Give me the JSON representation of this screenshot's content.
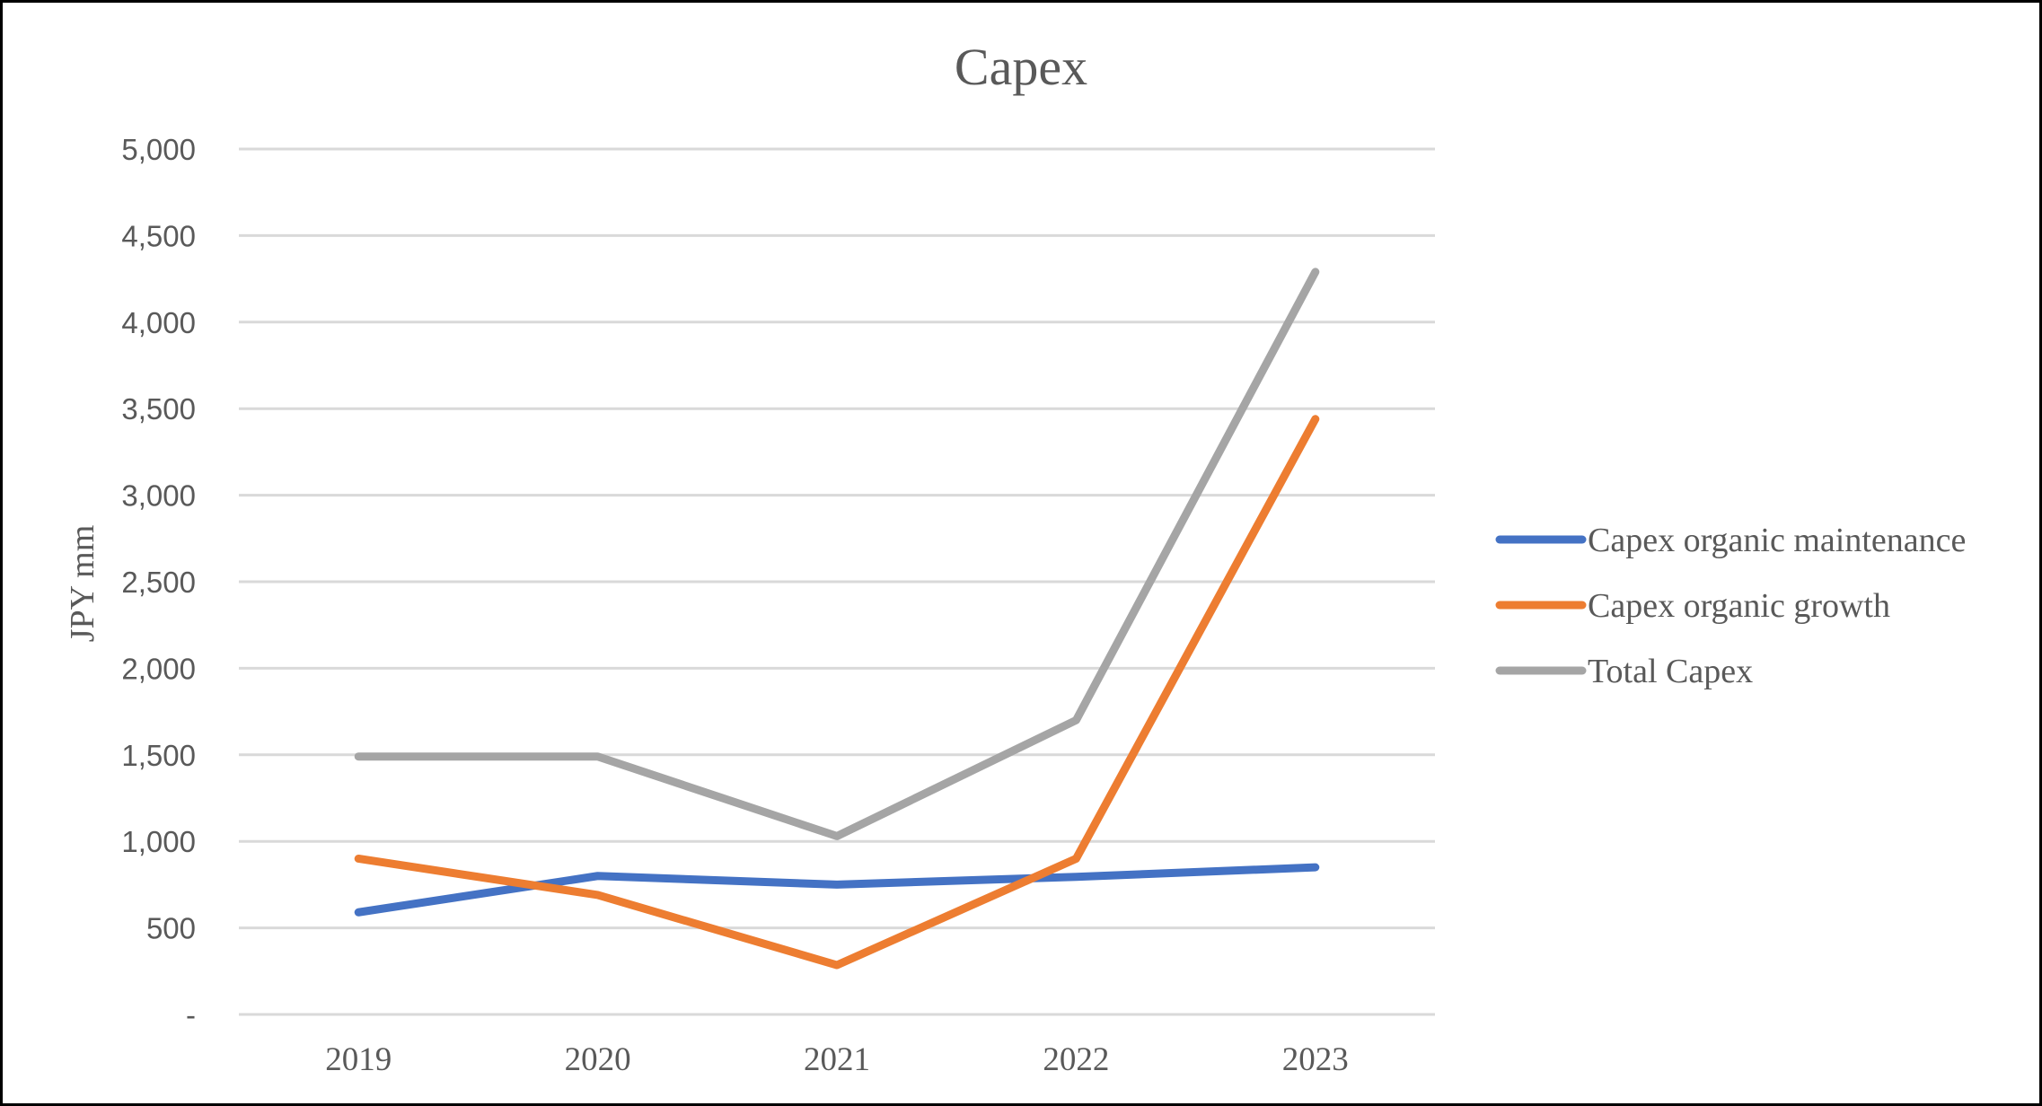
{
  "chart_data": {
    "type": "line",
    "title": "Capex",
    "xlabel": "",
    "ylabel": "JPY mm",
    "categories": [
      "2019",
      "2020",
      "2021",
      "2022",
      "2023"
    ],
    "ylim": [
      0,
      5000
    ],
    "yticks": [
      0,
      500,
      1000,
      1500,
      2000,
      2500,
      3000,
      3500,
      4000,
      4500,
      5000
    ],
    "ytick_labels": [
      "-",
      "500",
      "1,000",
      "1,500",
      "2,000",
      "2,500",
      "3,000",
      "3,500",
      "4,000",
      "4,500",
      "5,000"
    ],
    "grid": "horizontal",
    "legend_position": "right",
    "series": [
      {
        "name": "Capex organic maintenance",
        "color": "#4472C4",
        "values": [
          590,
          800,
          750,
          795,
          850
        ]
      },
      {
        "name": "Capex organic growth",
        "color": "#ED7D31",
        "values": [
          900,
          690,
          285,
          900,
          3440
        ]
      },
      {
        "name": "Total Capex",
        "color": "#A5A5A5",
        "values": [
          1490,
          1490,
          1030,
          1700,
          4290
        ]
      }
    ]
  }
}
